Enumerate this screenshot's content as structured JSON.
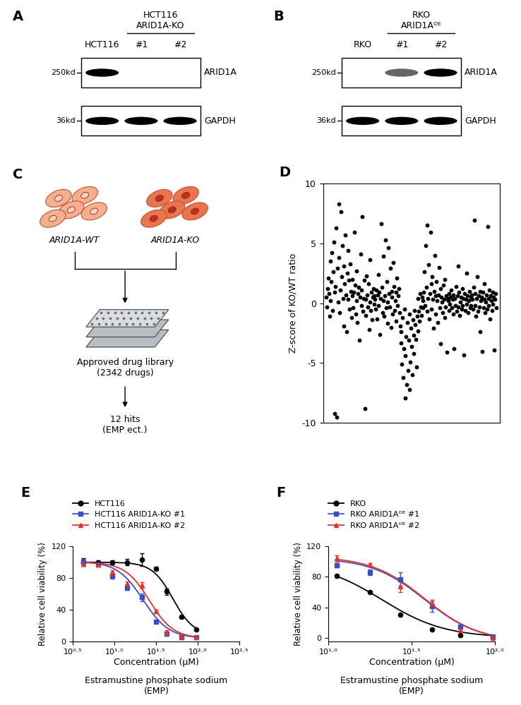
{
  "blots": [
    {
      "panel": "A",
      "control": "HCT116",
      "group": {
        "label": [
          "HCT116",
          "ARID1A-KO"
        ],
        "lanes": [
          "#1",
          "#2"
        ]
      },
      "rows": [
        {
          "label": "ARID1A",
          "size": "250kd",
          "bands": [
            1.0,
            0,
            0
          ]
        },
        {
          "label": "GAPDH",
          "size": "36kd",
          "bands": [
            1.0,
            1.0,
            1.0
          ]
        }
      ]
    },
    {
      "panel": "B",
      "control": "RKO",
      "group": {
        "label": [
          "RKO",
          "ARID1Aᴼᴱ"
        ],
        "lanes": [
          "#1",
          "#2"
        ]
      },
      "rows": [
        {
          "label": "ARID1A",
          "size": "250kd",
          "bands": [
            0,
            0.6,
            1.0
          ]
        },
        {
          "label": "GAPDH",
          "size": "36kd",
          "bands": [
            1.0,
            1.0,
            1.0
          ]
        }
      ]
    }
  ],
  "schematic": {
    "panel": "C",
    "cells": [
      "ARID1A-WT",
      "ARID1A-KO"
    ],
    "library": [
      "Approved drug library",
      "(2342 drugs)"
    ],
    "result": [
      "12 hits",
      "(EMP ect.)"
    ]
  },
  "chart_data": [
    {
      "panel": "D",
      "type": "scatter",
      "ylabel": "Z-score of KO/WT ratio",
      "ylim": [
        -10,
        10
      ],
      "yticks": [
        -10,
        -5,
        0,
        5,
        10
      ],
      "tick_labels": "y",
      "color": "#000000",
      "values": [
        0.5,
        -0.3,
        1.2,
        2.1,
        0.8,
        -1.1,
        3.5,
        0.2,
        1.8,
        4.2,
        -0.6,
        2.6,
        5.1,
        0.9,
        -9.2,
        1.4,
        6.3,
        -9.5,
        2.9,
        0.1,
        8.3,
        3.8,
        -0.8,
        1.1,
        7.6,
        2.2,
        4.8,
        0.4,
        -1.9,
        3.1,
        1.6,
        5.7,
        0.7,
        -2.4,
        2.5,
        0.3,
        4.4,
        1.9,
        -0.5,
        3.3,
        1.0,
        -1.2,
        0.6,
        2.0,
        -0.4,
        0.9,
        5.9,
        1.5,
        -0.9,
        0.2,
        2.7,
        -1.6,
        0.8,
        1.3,
        -3.1,
        0.5,
        4.1,
        -0.2,
        1.1,
        7.2,
        -0.7,
        0.4,
        1.9,
        -8.8,
        0.3,
        -1.0,
        2.3,
        0.7,
        -0.3,
        1.6,
        -2.2,
        0.1,
        3.6,
        -0.6,
        0.9,
        -1.4,
        0.5,
        1.2,
        -0.1,
        0.6,
        0.3,
        -0.5,
        1.1,
        -1.3,
        0.7,
        2.4,
        -0.2,
        0.9,
        -2.6,
        0.4,
        6.6,
        1.3,
        -0.8,
        0.2,
        3.9,
        -1.1,
        0.6,
        5.3,
        -0.4,
        1.8,
        0.1,
        -1.7,
        4.6,
        0.8,
        -0.3,
        2.9,
        -2.0,
        1.0,
        0.5,
        -0.9,
        3.4,
        1.4,
        -0.6,
        0.2,
        -1.5,
        0.9,
        2.1,
        -0.2,
        0.6,
        1.2,
        -0.8,
        -1.9,
        -3.3,
        -2.4,
        -5.1,
        -1.2,
        -6.2,
        -3.8,
        -0.5,
        -7.9,
        -4.4,
        -2.8,
        -6.8,
        -1.6,
        -5.6,
        -3.1,
        -0.9,
        -7.2,
        -4.9,
        -2.1,
        -3.6,
        -6.0,
        -1.4,
        -2.7,
        -4.2,
        -0.6,
        -1.8,
        -3.0,
        -5.3,
        -1.1,
        -2.3,
        0.4,
        -0.7,
        -1.5,
        0.8,
        -0.3,
        -1.0,
        0.5,
        -0.4,
        0.2,
        0.9,
        2.6,
        -0.2,
        4.8,
        1.3,
        -0.7,
        6.5,
        0.4,
        3.2,
        -1.3,
        0.8,
        5.9,
        1.6,
        -0.5,
        2.2,
        0.3,
        -2.1,
        1.0,
        4.0,
        0.6,
        -0.9,
        1.8,
        0.2,
        -1.6,
        0.7,
        3.0,
        -0.4,
        1.2,
        -3.4,
        0.5,
        0.1,
        -0.8,
        1.5,
        0.3,
        -1.2,
        2.0,
        -0.3,
        0.6,
        -4.1,
        0.4,
        0.2,
        -0.6,
        0.8,
        -0.1,
        0.5,
        1.1,
        -0.4,
        0.3,
        -0.9,
        0.7,
        -3.8,
        0.4,
        -0.2,
        1.4,
        -0.7,
        0.6,
        3.1,
        -0.3,
        0.9,
        -1.0,
        0.1,
        0.5,
        -0.5,
        1.2,
        -0.2,
        0.4,
        -4.3,
        0.8,
        -0.6,
        0.3,
        2.5,
        -0.1,
        0.6,
        -0.8,
        0.2,
        1.0,
        -0.4,
        0.5,
        -0.2,
        0.7,
        0.3,
        -0.5,
        1.3,
        6.9,
        -0.2,
        0.8,
        -1.1,
        0.4,
        2.2,
        -0.7,
        0.6,
        -0.3,
        1.0,
        -2.4,
        0.2,
        0.5,
        -4.0,
        0.9,
        -0.4,
        0.3,
        1.6,
        -0.8,
        0.1,
        0.7,
        -0.5,
        6.4,
        0.4,
        -0.2,
        1.1,
        -1.3,
        0.6,
        0.2,
        -0.6,
        0.9,
        -0.1,
        0.5,
        -3.9,
        0.3,
        0.8,
        -0.4
      ]
    },
    {
      "panel": "E",
      "type": "line",
      "xlabel": "Concentration (μM)",
      "annotation": "Estramustine phosphate sodium\n(EMP)",
      "ylabel": "Relative cell viability (%)",
      "log": "x",
      "xlim": [
        3.1623,
        316.23
      ],
      "xticks": [
        {
          "value": 3.1623,
          "label": "10⁰·⁵"
        },
        {
          "value": 10,
          "label": "10¹·⁰"
        },
        {
          "value": 31.623,
          "label": "10¹·⁵"
        },
        {
          "value": 100,
          "label": "10²·⁰"
        },
        {
          "value": 316.23,
          "label": "10²·⁵"
        }
      ],
      "ylim": [
        0,
        120
      ],
      "yticks": [
        0,
        40,
        80,
        120
      ],
      "legend": "upper left",
      "series": [
        {
          "name": "HCT116",
          "color": "#000000",
          "marker": "circle",
          "x": [
            4.2,
            6.3,
            9.4,
            14.1,
            21.1,
            31.6,
            42.2,
            63.2,
            94.9
          ],
          "values": [
            100,
            100,
            100,
            100,
            103,
            92,
            63,
            31,
            15
          ],
          "errors": [
            5,
            2,
            2,
            4,
            8,
            2,
            4,
            2,
            1
          ],
          "fit": {
            "top": 100,
            "bottom": 8,
            "ic50": 50,
            "hill": 3.5
          }
        },
        {
          "name": "HCT116 ARID1A-KO #1",
          "color": "#3a4fc4",
          "marker": "square",
          "x": [
            4.2,
            6.3,
            9.4,
            14.1,
            21.1,
            31.6,
            42.2,
            63.2,
            94.9
          ],
          "values": [
            101,
            97,
            83,
            68,
            56,
            25,
            10,
            5,
            5
          ],
          "errors": [
            3,
            2,
            4,
            3,
            5,
            2,
            2,
            1,
            1
          ],
          "fit": {
            "top": 101,
            "bottom": 4,
            "ic50": 22,
            "hill": 2.8
          }
        },
        {
          "name": "HCT116 ARID1A-KO #2",
          "color": "#e8312b",
          "marker": "triangle",
          "x": [
            4.2,
            6.3,
            9.4,
            14.1,
            21.1,
            31.6,
            42.2,
            63.2,
            94.9
          ],
          "values": [
            98,
            97,
            87,
            73,
            71,
            38,
            12,
            6,
            5
          ],
          "errors": [
            3,
            2,
            3,
            3,
            4,
            2,
            2,
            1,
            1
          ],
          "fit": {
            "top": 100,
            "bottom": 4,
            "ic50": 26,
            "hill": 3.0
          }
        }
      ]
    },
    {
      "panel": "F",
      "type": "line",
      "xlabel": "Concentration (μM)",
      "annotation": "Estramustine phosphate sodium\n(EMP)",
      "ylabel": "Relative cell viability (%)",
      "log": "x",
      "xlim": [
        10,
        100
      ],
      "xticks": [
        {
          "value": 10,
          "label": "10¹·⁰"
        },
        {
          "value": 31.623,
          "label": "10¹·⁵"
        },
        {
          "value": 100,
          "label": "10²·⁰"
        }
      ],
      "ylim": [
        -5,
        120
      ],
      "yticks": [
        0,
        40,
        80,
        120
      ],
      "legend": "upper left",
      "series": [
        {
          "name": "RKO",
          "color": "#000000",
          "marker": "circle",
          "x": [
            11.3,
            17.8,
            27.0,
            42.0,
            62.0,
            97.0
          ],
          "values": [
            81,
            60,
            30,
            11,
            3,
            1
          ],
          "errors": [
            2,
            1,
            1,
            1,
            1,
            1
          ],
          "fit": {
            "top": 100,
            "bottom": 0,
            "ic50": 21,
            "hill": 2.3
          }
        },
        {
          "name": "RKO ARID1Aᴼᴱ #1",
          "color": "#3a4fc4",
          "marker": "square",
          "x": [
            11.3,
            17.8,
            27.0,
            42.0,
            62.0,
            97.0
          ],
          "values": [
            95,
            86,
            77,
            41,
            15,
            2
          ],
          "errors": [
            3,
            4,
            9,
            7,
            2,
            1
          ],
          "fit": {
            "top": 105,
            "bottom": -5,
            "ic50": 38,
            "hill": 2.7
          }
        },
        {
          "name": "RKO ARID1Aᴼᴱ #2",
          "color": "#e8312b",
          "marker": "triangle",
          "x": [
            11.3,
            17.8,
            27.0,
            42.0,
            62.0,
            97.0
          ],
          "values": [
            104,
            96,
            67,
            45,
            10,
            0
          ],
          "errors": [
            4,
            2,
            7,
            5,
            2,
            1
          ],
          "fit": {
            "top": 107,
            "bottom": -5,
            "ic50": 38,
            "hill": 2.7
          }
        }
      ]
    }
  ]
}
